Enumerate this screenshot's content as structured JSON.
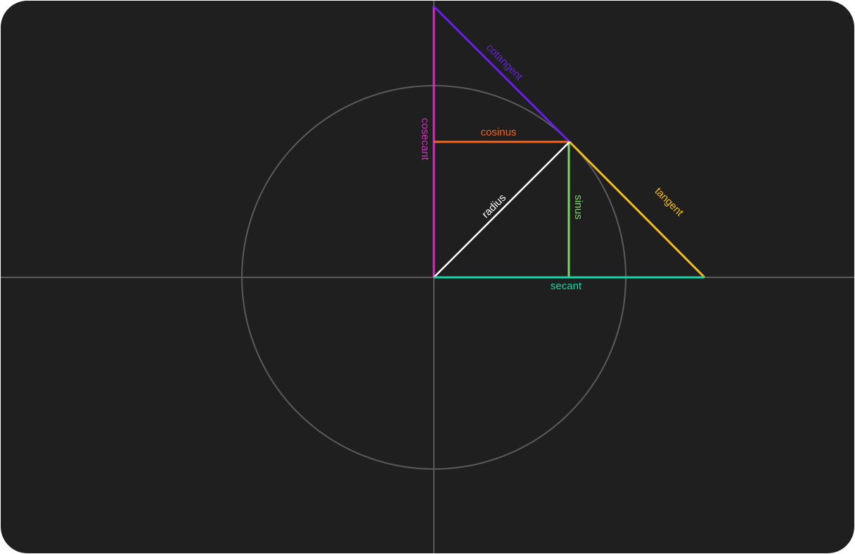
{
  "diagram": {
    "labels": {
      "cotangent": "cotangent",
      "cosecant": "cosecant",
      "cosinus": "cosinus",
      "radius": "radius",
      "sinus": "sinus",
      "tangent": "tangent",
      "secant": "secant"
    },
    "colors": {
      "background": "#1e1f1e",
      "axis": "#5a5b5a",
      "circle": "#5a5b5a",
      "cotangent": "#6a1fe6",
      "cosecant": "#d42fc2",
      "cosinus": "#f26522",
      "radius": "#ffffff",
      "sinus": "#7fd66b",
      "tangent": "#f2bd1d",
      "secant": "#19d3a6"
    }
  }
}
